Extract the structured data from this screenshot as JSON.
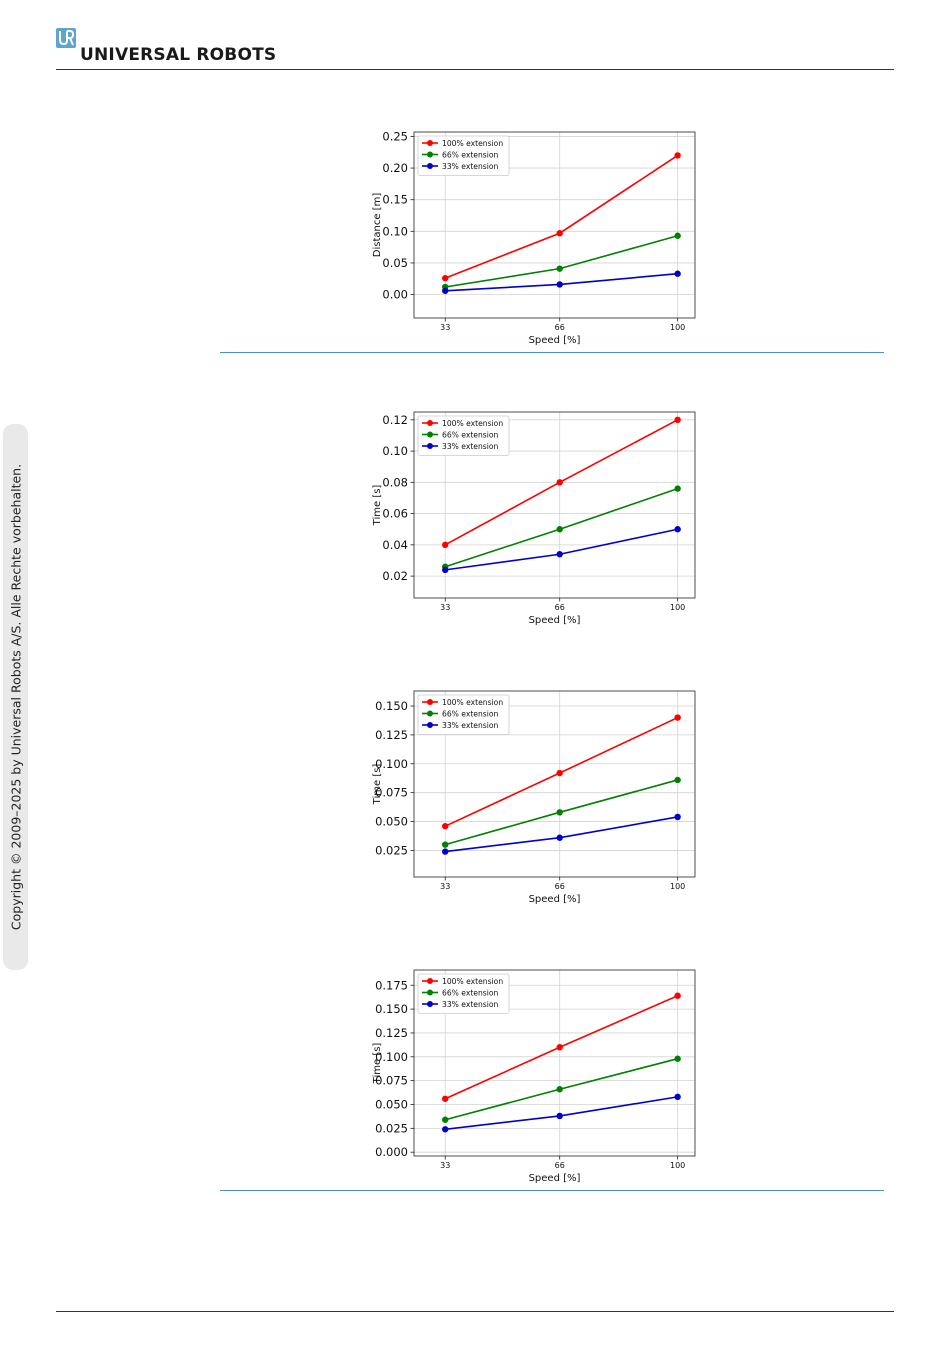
{
  "brand": {
    "name": "UNIVERSAL ROBOTS",
    "logo_icon": "ur-logo-icon",
    "logo_color": "#5fa3cf"
  },
  "copyright": "Copyright © 2009–2025 by Universal Robots A/S. Alle Rechte vorbehalten.",
  "chart_data": [
    {
      "type": "line",
      "x": [
        33,
        66,
        100
      ],
      "xticks": [
        "33",
        "66",
        "100"
      ],
      "xlabel": "Speed [%]",
      "ylabel": "Distance [m]",
      "ylim": [
        -0.037,
        0.257
      ],
      "yticks": [
        0.0,
        0.05,
        0.1,
        0.15,
        0.2,
        0.25
      ],
      "ytick_labels": [
        "0.00",
        "0.05",
        "0.10",
        "0.15",
        "0.20",
        "0.25"
      ],
      "grid": true,
      "legend": "top-left",
      "series": [
        {
          "name": "100% extension",
          "color": "#ff0000",
          "values": [
            0.026,
            0.097,
            0.22
          ]
        },
        {
          "name": "66% extension",
          "color": "#008000",
          "values": [
            0.012,
            0.041,
            0.093
          ]
        },
        {
          "name": "33% extension",
          "color": "#0000cc",
          "values": [
            0.006,
            0.016,
            0.033
          ]
        }
      ]
    },
    {
      "type": "line",
      "x": [
        33,
        66,
        100
      ],
      "xticks": [
        "33",
        "66",
        "100"
      ],
      "xlabel": "Speed [%]",
      "ylabel": "Time [s]",
      "ylim": [
        0.006,
        0.125
      ],
      "yticks": [
        0.02,
        0.04,
        0.06,
        0.08,
        0.1,
        0.12
      ],
      "ytick_labels": [
        "0.02",
        "0.04",
        "0.06",
        "0.08",
        "0.10",
        "0.12"
      ],
      "grid": true,
      "legend": "top-left",
      "series": [
        {
          "name": "100% extension",
          "color": "#ff0000",
          "values": [
            0.04,
            0.08,
            0.12
          ]
        },
        {
          "name": "66% extension",
          "color": "#008000",
          "values": [
            0.026,
            0.05,
            0.076
          ]
        },
        {
          "name": "33% extension",
          "color": "#0000cc",
          "values": [
            0.024,
            0.034,
            0.05
          ]
        }
      ]
    },
    {
      "type": "line",
      "x": [
        33,
        66,
        100
      ],
      "xticks": [
        "33",
        "66",
        "100"
      ],
      "xlabel": "Speed [%]",
      "ylabel": "Time [s]",
      "ylim": [
        0.002,
        0.163
      ],
      "yticks": [
        0.025,
        0.05,
        0.075,
        0.1,
        0.125,
        0.15
      ],
      "ytick_labels": [
        "0.025",
        "0.050",
        "0.075",
        "0.100",
        "0.125",
        "0.150"
      ],
      "grid": true,
      "legend": "top-left",
      "series": [
        {
          "name": "100% extension",
          "color": "#ff0000",
          "values": [
            0.046,
            0.092,
            0.14
          ]
        },
        {
          "name": "66% extension",
          "color": "#008000",
          "values": [
            0.03,
            0.058,
            0.086
          ]
        },
        {
          "name": "33% extension",
          "color": "#0000cc",
          "values": [
            0.024,
            0.036,
            0.054
          ]
        }
      ]
    },
    {
      "type": "line",
      "x": [
        33,
        66,
        100
      ],
      "xticks": [
        "33",
        "66",
        "100"
      ],
      "xlabel": "Speed [%]",
      "ylabel": "Time [s]",
      "ylim": [
        -0.004,
        0.191
      ],
      "yticks": [
        0.0,
        0.025,
        0.05,
        0.075,
        0.1,
        0.125,
        0.15,
        0.175
      ],
      "ytick_labels": [
        "0.000",
        "0.025",
        "0.050",
        "0.075",
        "0.100",
        "0.125",
        "0.150",
        "0.175"
      ],
      "grid": true,
      "legend": "top-left",
      "series": [
        {
          "name": "100% extension",
          "color": "#ff0000",
          "values": [
            0.056,
            0.11,
            0.164
          ]
        },
        {
          "name": "66% extension",
          "color": "#008000",
          "values": [
            0.034,
            0.066,
            0.098
          ]
        },
        {
          "name": "33% extension",
          "color": "#0000cc",
          "values": [
            0.024,
            0.038,
            0.058
          ]
        }
      ]
    }
  ]
}
